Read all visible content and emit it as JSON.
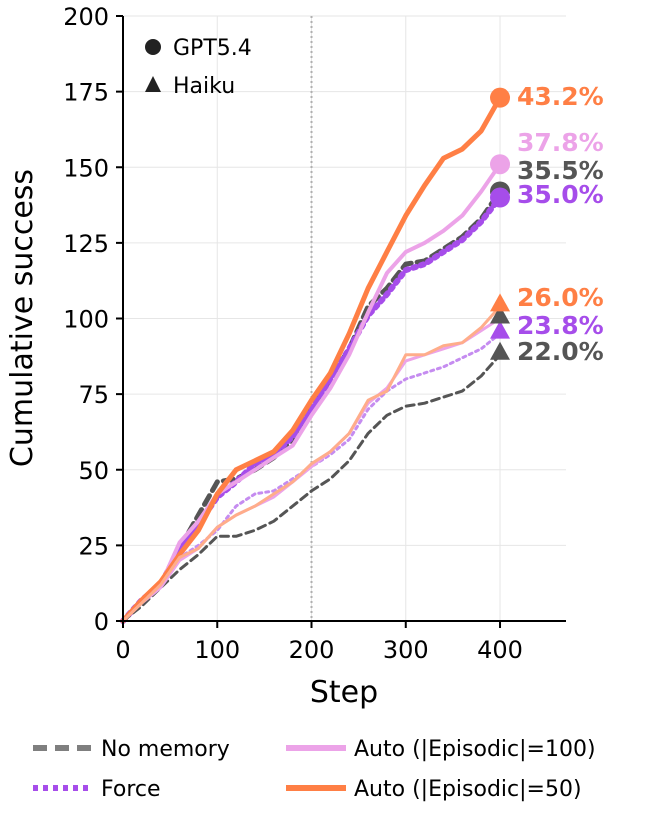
{
  "chart_data": {
    "type": "line",
    "xlabel": "Step",
    "ylabel": "Cumulative success",
    "xlim": [
      0,
      470
    ],
    "ylim": [
      0,
      200
    ],
    "xticks": [
      0,
      100,
      200,
      300,
      400
    ],
    "yticks": [
      0,
      25,
      50,
      75,
      100,
      125,
      150,
      175,
      200
    ],
    "xtick_labels": [
      "0",
      "100",
      "200",
      "300",
      "400"
    ],
    "ytick_labels": [
      "0",
      "25",
      "50",
      "75",
      "100",
      "125",
      "150",
      "175",
      "200"
    ],
    "grid": true,
    "vline_x": 200,
    "model_legend": [
      {
        "label": "GPT5.4",
        "marker": "circle"
      },
      {
        "label": "Haiku",
        "marker": "triangle"
      }
    ],
    "legend": [
      {
        "label": "No memory",
        "color": "#7f7f7f",
        "style": "dashed"
      },
      {
        "label": "Force",
        "color": "#a64dea",
        "style": "dotted"
      },
      {
        "label": "Auto (|Episodic|=100)",
        "color": "#eca3e8",
        "style": "solid"
      },
      {
        "label": "Auto (|Episodic|=50)",
        "color": "#ff7f45",
        "style": "solid"
      }
    ],
    "series": [
      {
        "model": "GPT5.4",
        "key": "no-memory",
        "color": "#555555",
        "dash": "10,6",
        "width": 5,
        "marker": "circle",
        "end_label": "35.5%",
        "label_color": "#555555",
        "points": [
          [
            0,
            0
          ],
          [
            20,
            7
          ],
          [
            40,
            12
          ],
          [
            60,
            24
          ],
          [
            80,
            35
          ],
          [
            100,
            46
          ],
          [
            120,
            47
          ],
          [
            140,
            50
          ],
          [
            160,
            54
          ],
          [
            180,
            60
          ],
          [
            200,
            70
          ],
          [
            220,
            80
          ],
          [
            240,
            90
          ],
          [
            260,
            104
          ],
          [
            280,
            110
          ],
          [
            300,
            118
          ],
          [
            320,
            119
          ],
          [
            340,
            123
          ],
          [
            360,
            127
          ],
          [
            380,
            133
          ],
          [
            400,
            142
          ]
        ]
      },
      {
        "model": "GPT5.4",
        "key": "force",
        "color": "#a64dea",
        "dash": "3,5",
        "width": 6,
        "marker": "circle",
        "end_label": "35.0%",
        "label_color": "#a64dea",
        "points": [
          [
            0,
            0
          ],
          [
            20,
            7
          ],
          [
            40,
            12
          ],
          [
            60,
            24
          ],
          [
            80,
            32
          ],
          [
            100,
            41
          ],
          [
            120,
            46
          ],
          [
            140,
            52
          ],
          [
            160,
            55
          ],
          [
            180,
            61
          ],
          [
            200,
            70
          ],
          [
            220,
            80
          ],
          [
            240,
            90
          ],
          [
            260,
            101
          ],
          [
            280,
            108
          ],
          [
            300,
            116
          ],
          [
            320,
            118
          ],
          [
            340,
            122
          ],
          [
            360,
            126
          ],
          [
            380,
            132
          ],
          [
            400,
            140
          ]
        ]
      },
      {
        "model": "GPT5.4",
        "key": "auto-100",
        "color": "#eca3e8",
        "dash": "",
        "width": 4,
        "marker": "circle",
        "end_label": "37.8%",
        "label_color": "#eca3e8",
        "points": [
          [
            0,
            0
          ],
          [
            20,
            7
          ],
          [
            40,
            12
          ],
          [
            60,
            26
          ],
          [
            80,
            33
          ],
          [
            100,
            42
          ],
          [
            120,
            46
          ],
          [
            140,
            50
          ],
          [
            160,
            54
          ],
          [
            180,
            58
          ],
          [
            200,
            68
          ],
          [
            220,
            77
          ],
          [
            240,
            88
          ],
          [
            260,
            102
          ],
          [
            280,
            115
          ],
          [
            300,
            122
          ],
          [
            320,
            125
          ],
          [
            340,
            129
          ],
          [
            360,
            134
          ],
          [
            380,
            142
          ],
          [
            400,
            151
          ]
        ]
      },
      {
        "model": "GPT5.4",
        "key": "auto-50",
        "color": "#ff7f45",
        "dash": "",
        "width": 5,
        "marker": "circle",
        "end_label": "43.2%",
        "label_color": "#ff7f45",
        "points": [
          [
            0,
            0
          ],
          [
            20,
            7
          ],
          [
            40,
            13
          ],
          [
            60,
            22
          ],
          [
            80,
            30
          ],
          [
            100,
            42
          ],
          [
            120,
            50
          ],
          [
            140,
            53
          ],
          [
            160,
            56
          ],
          [
            180,
            63
          ],
          [
            200,
            73
          ],
          [
            220,
            82
          ],
          [
            240,
            95
          ],
          [
            260,
            110
          ],
          [
            280,
            122
          ],
          [
            300,
            134
          ],
          [
            320,
            144
          ],
          [
            340,
            153
          ],
          [
            360,
            156
          ],
          [
            380,
            162
          ],
          [
            400,
            173
          ]
        ]
      },
      {
        "model": "Haiku",
        "key": "no-memory",
        "color": "#555555",
        "dash": "8,5",
        "width": 3,
        "marker": "triangle",
        "end_label": "22.0%",
        "label_color": "#555555",
        "points": [
          [
            0,
            0
          ],
          [
            20,
            5
          ],
          [
            40,
            11
          ],
          [
            60,
            17
          ],
          [
            80,
            22
          ],
          [
            100,
            28
          ],
          [
            120,
            28
          ],
          [
            140,
            30
          ],
          [
            160,
            33
          ],
          [
            180,
            38
          ],
          [
            200,
            43
          ],
          [
            220,
            47
          ],
          [
            240,
            53
          ],
          [
            260,
            62
          ],
          [
            280,
            68
          ],
          [
            300,
            71
          ],
          [
            320,
            72
          ],
          [
            340,
            74
          ],
          [
            360,
            76
          ],
          [
            380,
            81
          ],
          [
            400,
            88
          ]
        ]
      },
      {
        "model": "Haiku",
        "key": "force",
        "color": "#c58cf0",
        "dash": "3,4",
        "width": 3,
        "marker": "triangle",
        "end_label": "23.8%",
        "label_color": "#a64dea",
        "points": [
          [
            0,
            0
          ],
          [
            20,
            6
          ],
          [
            40,
            12
          ],
          [
            60,
            21
          ],
          [
            80,
            25
          ],
          [
            100,
            30
          ],
          [
            120,
            38
          ],
          [
            140,
            42
          ],
          [
            160,
            43
          ],
          [
            180,
            47
          ],
          [
            200,
            51
          ],
          [
            220,
            55
          ],
          [
            240,
            60
          ],
          [
            260,
            70
          ],
          [
            280,
            76
          ],
          [
            300,
            80
          ],
          [
            320,
            82
          ],
          [
            340,
            84
          ],
          [
            360,
            87
          ],
          [
            380,
            90
          ],
          [
            400,
            95
          ]
        ]
      },
      {
        "model": "Haiku",
        "key": "auto-100",
        "color": "#eca3e8",
        "dash": "",
        "width": 3,
        "marker": "triangle",
        "end_label": "",
        "label_color": "#eca3e8",
        "points": [
          [
            0,
            0
          ],
          [
            20,
            6
          ],
          [
            40,
            11
          ],
          [
            60,
            20
          ],
          [
            80,
            24
          ],
          [
            100,
            31
          ],
          [
            120,
            35
          ],
          [
            140,
            38
          ],
          [
            160,
            41
          ],
          [
            180,
            46
          ],
          [
            200,
            51
          ],
          [
            220,
            56
          ],
          [
            240,
            62
          ],
          [
            260,
            72
          ],
          [
            280,
            77
          ],
          [
            300,
            86
          ],
          [
            320,
            88
          ],
          [
            340,
            90
          ],
          [
            360,
            92
          ],
          [
            380,
            96
          ],
          [
            400,
            100
          ]
        ]
      },
      {
        "model": "Haiku",
        "key": "auto-50",
        "color": "#ffad8a",
        "dash": "",
        "width": 3,
        "marker": "triangle",
        "end_label": "26.0%",
        "label_color": "#ff7f45",
        "points": [
          [
            0,
            0
          ],
          [
            20,
            6
          ],
          [
            40,
            12
          ],
          [
            60,
            21
          ],
          [
            80,
            24
          ],
          [
            100,
            31
          ],
          [
            120,
            35
          ],
          [
            140,
            38
          ],
          [
            160,
            42
          ],
          [
            180,
            46
          ],
          [
            200,
            52
          ],
          [
            220,
            56
          ],
          [
            240,
            62
          ],
          [
            260,
            73
          ],
          [
            280,
            76
          ],
          [
            300,
            88
          ],
          [
            320,
            88
          ],
          [
            340,
            91
          ],
          [
            360,
            92
          ],
          [
            380,
            97
          ],
          [
            400,
            104
          ]
        ]
      }
    ]
  }
}
